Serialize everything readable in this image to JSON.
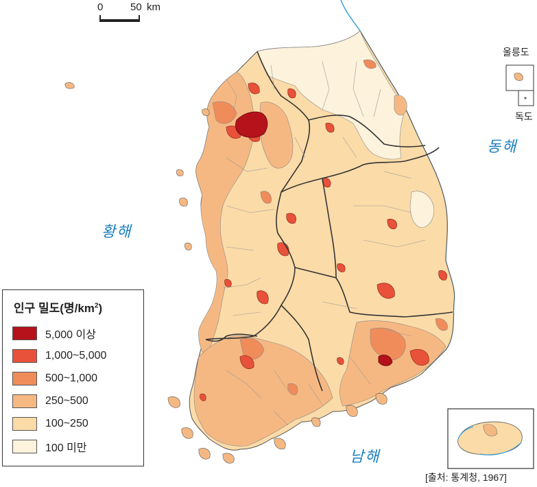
{
  "scale": {
    "zero": "0",
    "distance": "50",
    "unit": "km"
  },
  "seas": {
    "east": "동해",
    "west": "황해",
    "south": "남해"
  },
  "insets": {
    "ulleungdo": "울릉도",
    "dokdo": "독도"
  },
  "legend": {
    "title_main": "인구 밀도",
    "title_unit_prefix": "(명/km",
    "title_unit_sup": "2",
    "title_unit_suffix": ")",
    "items": [
      {
        "label": "5,000 이상",
        "color": "#b5121b"
      },
      {
        "label": "1,000~5,000",
        "color": "#e8513a"
      },
      {
        "label": "500~1,000",
        "color": "#f08c5a"
      },
      {
        "label": "250~500",
        "color": "#f6b882"
      },
      {
        "label": "100~250",
        "color": "#fbdba8"
      },
      {
        "label": "100 미만",
        "color": "#fdf2dc"
      }
    ]
  },
  "source": "[출처: 통계청, 1967]",
  "colors": {
    "sea_label": "#1a7fc1",
    "boundary": "#555555",
    "province_boundary": "#333333"
  }
}
